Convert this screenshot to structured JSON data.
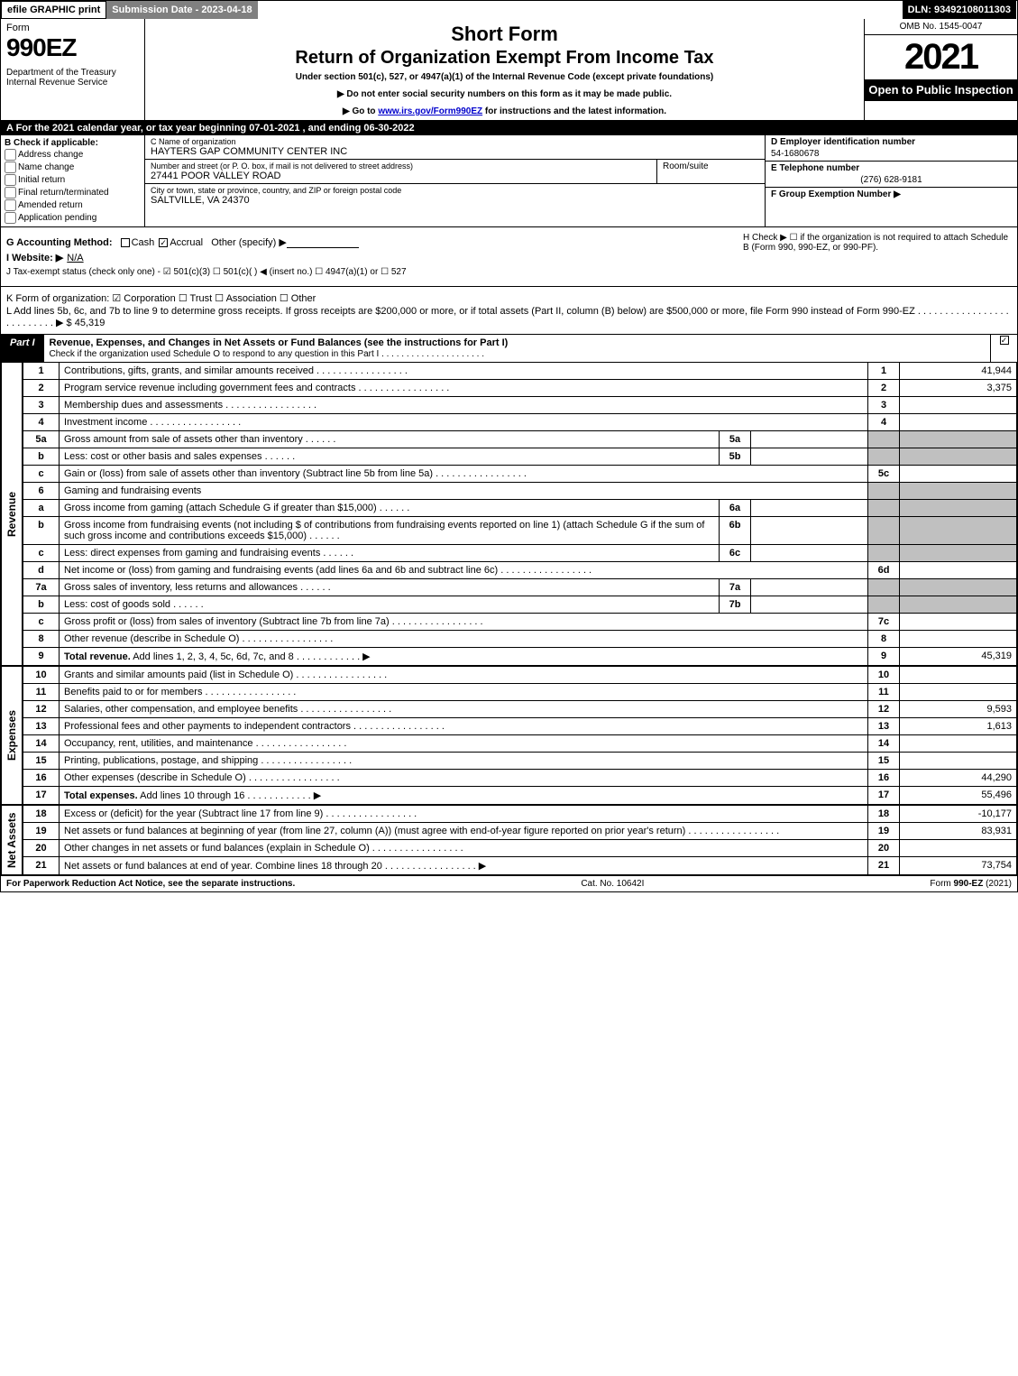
{
  "top_bar": {
    "efile": "efile GRAPHIC print",
    "submission": "Submission Date - 2023-04-18",
    "dln": "DLN: 93492108011303"
  },
  "header": {
    "form_label": "Form",
    "form_num": "990EZ",
    "dept": "Department of the Treasury\nInternal Revenue Service",
    "short_form": "Short Form",
    "return_title": "Return of Organization Exempt From Income Tax",
    "under": "Under section 501(c), 527, or 4947(a)(1) of the Internal Revenue Code (except private foundations)",
    "notice1": "▶ Do not enter social security numbers on this form as it may be made public.",
    "notice2_pre": "▶ Go to ",
    "notice2_link": "www.irs.gov/Form990EZ",
    "notice2_post": " for instructions and the latest information.",
    "omb": "OMB No. 1545-0047",
    "year": "2021",
    "open": "Open to Public Inspection"
  },
  "section_a": "A  For the 2021 calendar year, or tax year beginning 07-01-2021 , and ending 06-30-2022",
  "section_b": {
    "label": "B  Check if applicable:",
    "opts": [
      "Address change",
      "Name change",
      "Initial return",
      "Final return/terminated",
      "Amended return",
      "Application pending"
    ]
  },
  "section_c": {
    "name_label": "C Name of organization",
    "name": "HAYTERS GAP COMMUNITY CENTER INC",
    "street_label": "Number and street (or P. O. box, if mail is not delivered to street address)",
    "street": "27441 POOR VALLEY ROAD",
    "room_label": "Room/suite",
    "city_label": "City or town, state or province, country, and ZIP or foreign postal code",
    "city": "SALTVILLE, VA  24370"
  },
  "section_d": {
    "label": "D Employer identification number",
    "val": "54-1680678"
  },
  "section_e": {
    "label": "E Telephone number",
    "val": "(276) 628-9181"
  },
  "section_f": {
    "label": "F Group Exemption Number   ▶"
  },
  "section_g": {
    "label": "G Accounting Method:",
    "cash": "Cash",
    "accrual": "Accrual",
    "other": "Other (specify) ▶"
  },
  "section_h": "H  Check ▶ ☐ if the organization is not required to attach Schedule B (Form 990, 990-EZ, or 990-PF).",
  "section_i": {
    "label": "I Website: ▶",
    "val": "N/A"
  },
  "section_j": "J Tax-exempt status (check only one) - ☑ 501(c)(3)  ☐ 501(c)(  ) ◀ (insert no.)  ☐ 4947(a)(1) or  ☐ 527",
  "section_k": "K Form of organization:  ☑ Corporation   ☐ Trust   ☐ Association   ☐ Other",
  "section_l": {
    "text": "L Add lines 5b, 6c, and 7b to line 9 to determine gross receipts. If gross receipts are $200,000 or more, or if total assets (Part II, column (B) below) are $500,000 or more, file Form 990 instead of Form 990-EZ  . . . . . . . . . . . . . . . . . . . . . . . . . .   ▶ $",
    "val": "45,319"
  },
  "part1": {
    "tab": "Part I",
    "title": "Revenue, Expenses, and Changes in Net Assets or Fund Balances (see the instructions for Part I)",
    "note": "Check if the organization used Schedule O to respond to any question in this Part I . . . . . . . . . . . . . . . . . . . . ."
  },
  "lines": [
    {
      "n": "1",
      "d": "Contributions, gifts, grants, and similar amounts received",
      "rn": "1",
      "rv": "41,944"
    },
    {
      "n": "2",
      "d": "Program service revenue including government fees and contracts",
      "rn": "2",
      "rv": "3,375"
    },
    {
      "n": "3",
      "d": "Membership dues and assessments",
      "rn": "3",
      "rv": ""
    },
    {
      "n": "4",
      "d": "Investment income",
      "rn": "4",
      "rv": ""
    },
    {
      "n": "5a",
      "d": "Gross amount from sale of assets other than inventory",
      "mn": "5a",
      "mv": "",
      "shaded": true
    },
    {
      "n": "b",
      "d": "Less: cost or other basis and sales expenses",
      "mn": "5b",
      "mv": "",
      "shaded": true
    },
    {
      "n": "c",
      "d": "Gain or (loss) from sale of assets other than inventory (Subtract line 5b from line 5a)",
      "rn": "5c",
      "rv": ""
    },
    {
      "n": "6",
      "d": "Gaming and fundraising events",
      "header": true
    },
    {
      "n": "a",
      "d": "Gross income from gaming (attach Schedule G if greater than $15,000)",
      "mn": "6a",
      "mv": "",
      "shaded": true
    },
    {
      "n": "b",
      "d": "Gross income from fundraising events (not including $              of contributions from fundraising events reported on line 1) (attach Schedule G if the sum of such gross income and contributions exceeds $15,000)",
      "mn": "6b",
      "mv": "",
      "shaded": true
    },
    {
      "n": "c",
      "d": "Less: direct expenses from gaming and fundraising events",
      "mn": "6c",
      "mv": "",
      "shaded": true
    },
    {
      "n": "d",
      "d": "Net income or (loss) from gaming and fundraising events (add lines 6a and 6b and subtract line 6c)",
      "rn": "6d",
      "rv": ""
    },
    {
      "n": "7a",
      "d": "Gross sales of inventory, less returns and allowances",
      "mn": "7a",
      "mv": "",
      "shaded": true
    },
    {
      "n": "b",
      "d": "Less: cost of goods sold",
      "mn": "7b",
      "mv": "",
      "shaded": true
    },
    {
      "n": "c",
      "d": "Gross profit or (loss) from sales of inventory (Subtract line 7b from line 7a)",
      "rn": "7c",
      "rv": ""
    },
    {
      "n": "8",
      "d": "Other revenue (describe in Schedule O)",
      "rn": "8",
      "rv": ""
    },
    {
      "n": "9",
      "d": "Total revenue. Add lines 1, 2, 3, 4, 5c, 6d, 7c, and 8",
      "rn": "9",
      "rv": "45,319",
      "bold": true,
      "arrow": true
    }
  ],
  "expenses": [
    {
      "n": "10",
      "d": "Grants and similar amounts paid (list in Schedule O)",
      "rn": "10",
      "rv": ""
    },
    {
      "n": "11",
      "d": "Benefits paid to or for members",
      "rn": "11",
      "rv": ""
    },
    {
      "n": "12",
      "d": "Salaries, other compensation, and employee benefits",
      "rn": "12",
      "rv": "9,593"
    },
    {
      "n": "13",
      "d": "Professional fees and other payments to independent contractors",
      "rn": "13",
      "rv": "1,613"
    },
    {
      "n": "14",
      "d": "Occupancy, rent, utilities, and maintenance",
      "rn": "14",
      "rv": ""
    },
    {
      "n": "15",
      "d": "Printing, publications, postage, and shipping",
      "rn": "15",
      "rv": ""
    },
    {
      "n": "16",
      "d": "Other expenses (describe in Schedule O)",
      "rn": "16",
      "rv": "44,290"
    },
    {
      "n": "17",
      "d": "Total expenses. Add lines 10 through 16",
      "rn": "17",
      "rv": "55,496",
      "bold": true,
      "arrow": true
    }
  ],
  "netassets": [
    {
      "n": "18",
      "d": "Excess or (deficit) for the year (Subtract line 17 from line 9)",
      "rn": "18",
      "rv": "-10,177"
    },
    {
      "n": "19",
      "d": "Net assets or fund balances at beginning of year (from line 27, column (A)) (must agree with end-of-year figure reported on prior year's return)",
      "rn": "19",
      "rv": "83,931",
      "tall": true
    },
    {
      "n": "20",
      "d": "Other changes in net assets or fund balances (explain in Schedule O)",
      "rn": "20",
      "rv": ""
    },
    {
      "n": "21",
      "d": "Net assets or fund balances at end of year. Combine lines 18 through 20",
      "rn": "21",
      "rv": "73,754",
      "arrow": true
    }
  ],
  "side_labels": {
    "revenue": "Revenue",
    "expenses": "Expenses",
    "netassets": "Net Assets"
  },
  "footer": {
    "left": "For Paperwork Reduction Act Notice, see the separate instructions.",
    "mid": "Cat. No. 10642I",
    "right_pre": "Form ",
    "right_bold": "990-EZ",
    "right_post": " (2021)"
  },
  "colors": {
    "black": "#000000",
    "white": "#ffffff",
    "gray_bar": "#808080",
    "shaded": "#c0c0c0",
    "link": "#0000cc"
  }
}
